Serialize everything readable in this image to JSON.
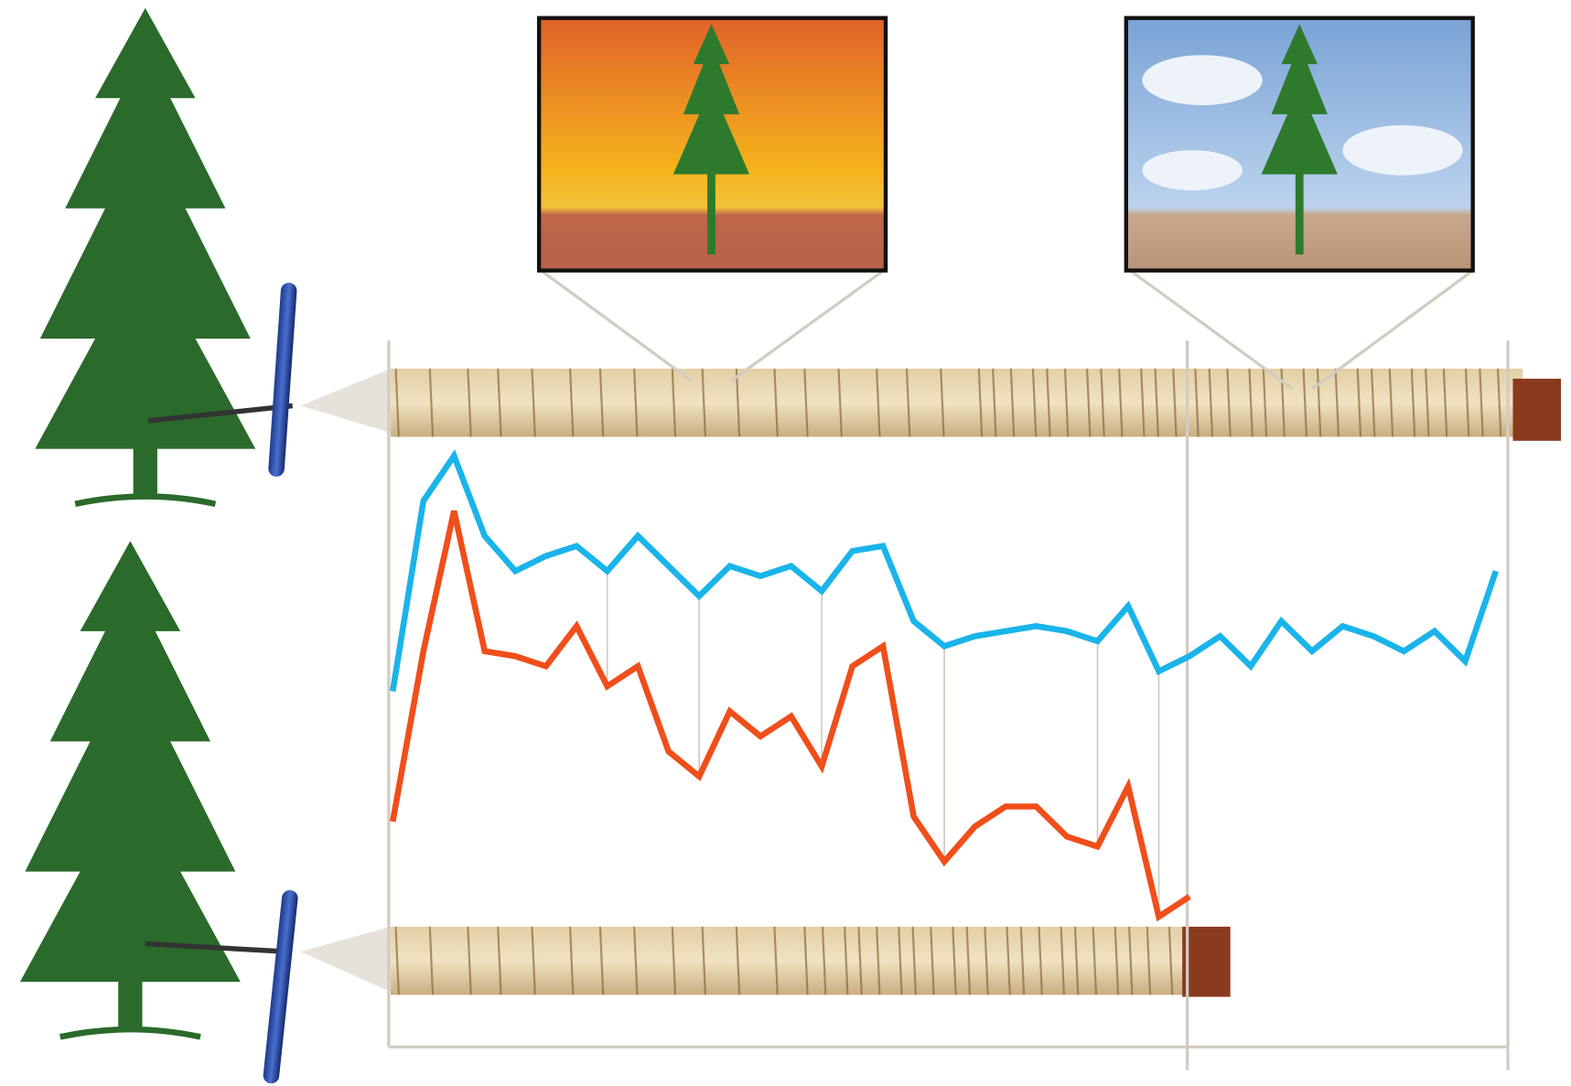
{
  "chart_data": {
    "type": "line",
    "categories": [
      null,
      null,
      null,
      null,
      null,
      null,
      null,
      null,
      null,
      null,
      null,
      null,
      null,
      null,
      null,
      null,
      null,
      null,
      null,
      null,
      null,
      null,
      null,
      null,
      null,
      null,
      null,
      null,
      null,
      null,
      null,
      null,
      null,
      null,
      null,
      null,
      null
    ],
    "series": [
      {
        "color": "#1ab4ea",
        "values": [
          52,
          90,
          99,
          83,
          76,
          79,
          81,
          76,
          83,
          77,
          71,
          77,
          75,
          77,
          72,
          80,
          81,
          66,
          61,
          63,
          64,
          65,
          64,
          62,
          69,
          56,
          59,
          63,
          57,
          66,
          60,
          65,
          63,
          60,
          64,
          58,
          76
        ]
      },
      {
        "color": "#f04e1a",
        "values": [
          26,
          60,
          88,
          60,
          59,
          57,
          65,
          53,
          57,
          40,
          35,
          48,
          43,
          47,
          37,
          57,
          61,
          27,
          18,
          25,
          29,
          29,
          23,
          21,
          33,
          7,
          11,
          null,
          null,
          null,
          null,
          null,
          null,
          null,
          null,
          null,
          null
        ]
      }
    ],
    "ylim": [
      0,
      100
    ]
  }
}
